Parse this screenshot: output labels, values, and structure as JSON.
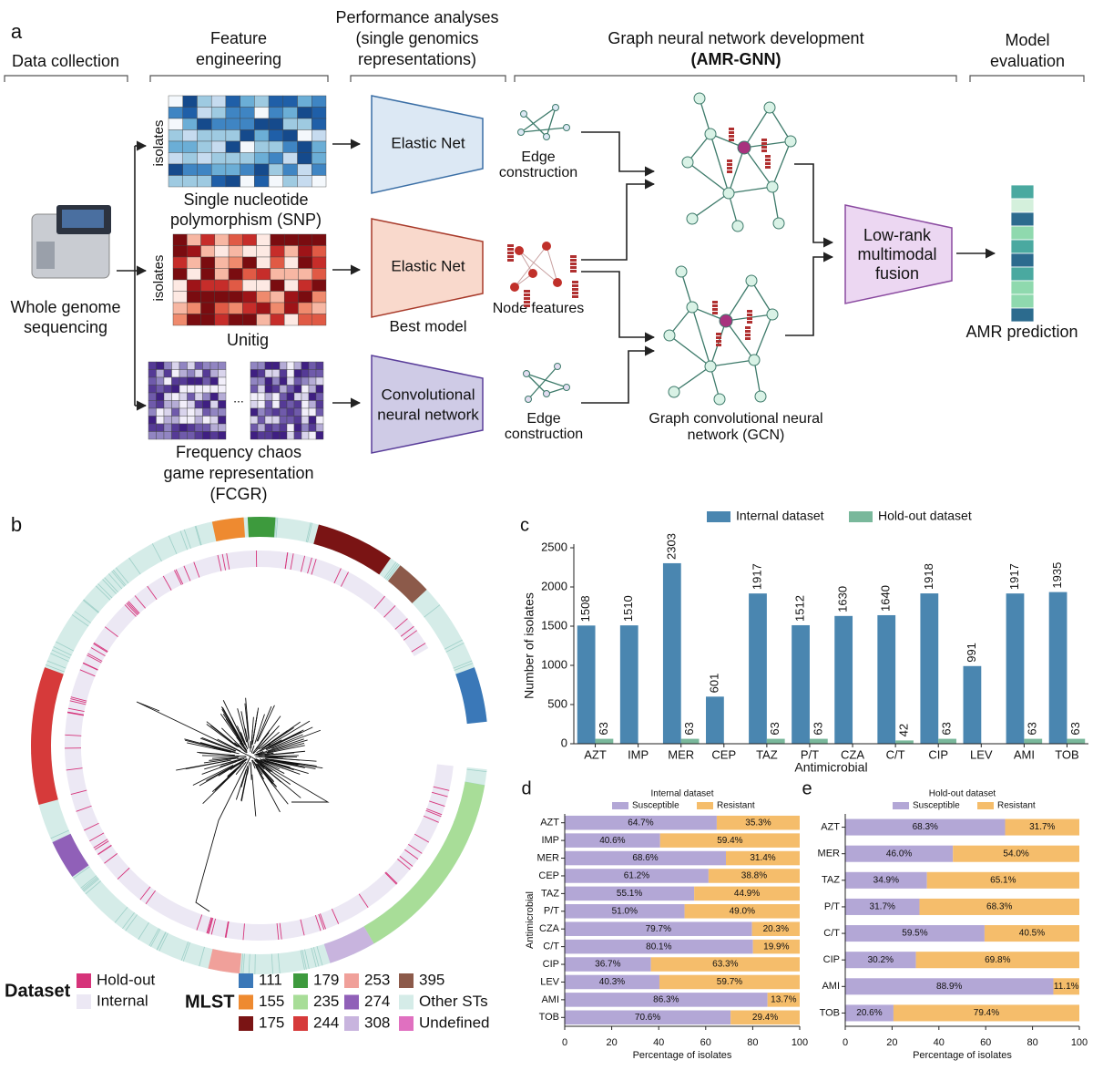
{
  "panel_a": {
    "label": "a",
    "stages": {
      "data_collection": "Data collection",
      "feature_engineering": [
        "Feature",
        "engineering"
      ],
      "performance": [
        "Performance analyses",
        "(single genomics",
        "representations)"
      ],
      "gnn": [
        "Graph neural network development",
        "(AMR-GNN)"
      ],
      "evaluation": [
        "Model",
        "evaluation"
      ]
    },
    "wgs": [
      "Whole genome",
      "sequencing"
    ],
    "isolates": "isolates",
    "snp": [
      "Single nucleotide",
      "polymorphism (SNP)"
    ],
    "unitig": "Unitig",
    "fcgr": [
      "Frequency chaos",
      "game representation",
      "(FCGR)"
    ],
    "ellipsis": "...",
    "models": [
      {
        "label": [
          "Elastic Net"
        ]
      },
      {
        "label": [
          "Elastic Net"
        ],
        "note": "Best model"
      },
      {
        "label": [
          "Convolutional",
          "neural network"
        ]
      }
    ],
    "edge1": [
      "Edge",
      "construction"
    ],
    "node_features": "Node features",
    "edge2": [
      "Edge",
      "construction"
    ],
    "gcn": [
      "Graph convolutional neural",
      "network (GCN)"
    ],
    "fusion": [
      "Low-rank",
      "multimodal",
      "fusion"
    ],
    "prediction": "AMR prediction"
  },
  "panel_b": {
    "label": "b",
    "dataset_legend": {
      "title": "Dataset",
      "entries": [
        {
          "name": "Hold-out",
          "color": "#d6337a"
        },
        {
          "name": "Internal",
          "color": "#ece8f4"
        }
      ]
    },
    "mlst_legend": {
      "title": "MLST",
      "entries": [
        {
          "name": "111",
          "color": "#3a78b8"
        },
        {
          "name": "155",
          "color": "#ee8a30"
        },
        {
          "name": "175",
          "color": "#7a1414"
        },
        {
          "name": "179",
          "color": "#3d9a3d"
        },
        {
          "name": "235",
          "color": "#a8dd98"
        },
        {
          "name": "244",
          "color": "#d63a3a"
        },
        {
          "name": "253",
          "color": "#f0a09a"
        },
        {
          "name": "274",
          "color": "#9060b8"
        },
        {
          "name": "308",
          "color": "#c8b4de"
        },
        {
          "name": "395",
          "color": "#8c5a4a"
        },
        {
          "name": "Other STs",
          "color": "#d5ece8"
        },
        {
          "name": "Undefined",
          "color": "#e070c0"
        }
      ]
    }
  },
  "chart_data": [
    {
      "type": "bar",
      "label": "c",
      "x_label": "Antimicrobial",
      "y_label": "Number of isolates",
      "legend": "top",
      "categories": [
        "AZT",
        "IMP",
        "MER",
        "CEP",
        "TAZ",
        "P/T",
        "CZA",
        "C/T",
        "CIP",
        "LEV",
        "AMI",
        "TOB"
      ],
      "series": [
        {
          "name": "Internal dataset",
          "color": "#4a86b0",
          "values": [
            1508,
            1510,
            2303,
            601,
            1917,
            1512,
            1630,
            1640,
            1918,
            991,
            1917,
            1935
          ]
        },
        {
          "name": "Hold-out dataset",
          "color": "#79b89b",
          "values": [
            63,
            null,
            63,
            null,
            63,
            63,
            null,
            42,
            63,
            null,
            63,
            63
          ]
        }
      ],
      "ylim": [
        0,
        2500
      ],
      "yticks": [
        0,
        500,
        1000,
        1500,
        2000,
        2500
      ]
    },
    {
      "type": "bar",
      "orientation": "horizontal",
      "stacked": true,
      "label": "d",
      "title": "Internal dataset",
      "x_label": "Percentage of isolates",
      "y_label": "Antimicrobial",
      "legend": "top",
      "categories": [
        "AZT",
        "IMP",
        "MER",
        "CEP",
        "TAZ",
        "P/T",
        "CZA",
        "C/T",
        "CIP",
        "LEV",
        "AMI",
        "TOB"
      ],
      "series": [
        {
          "name": "Susceptible",
          "color": "#b3a7d6",
          "values": [
            64.7,
            40.6,
            68.6,
            61.2,
            55.1,
            51.0,
            79.7,
            80.1,
            36.7,
            40.3,
            86.3,
            70.6
          ],
          "value_labels": [
            "64.7%",
            "40.6%",
            "68.6%",
            "61.2%",
            "55.1%",
            "51.0%",
            "79.7%",
            "80.1%",
            "36.7%",
            "40.3%",
            "86.3%",
            "70.6%"
          ]
        },
        {
          "name": "Resistant",
          "color": "#f5bd6b",
          "values": [
            35.3,
            59.4,
            31.4,
            38.8,
            44.9,
            49.0,
            20.3,
            19.9,
            63.3,
            59.7,
            13.7,
            29.4
          ],
          "value_labels": [
            "35.3%",
            "59.4%",
            "31.4%",
            "38.8%",
            "44.9%",
            "49.0%",
            "20.3%",
            "19.9%",
            "63.3%",
            "59.7%",
            "13.7%",
            "29.4%"
          ]
        }
      ],
      "xlim": [
        0,
        100
      ],
      "xticks": [
        0,
        20,
        40,
        60,
        80,
        100
      ]
    },
    {
      "type": "bar",
      "orientation": "horizontal",
      "stacked": true,
      "label": "e",
      "title": "Hold-out dataset",
      "x_label": "Percentage of isolates",
      "legend": "top",
      "categories": [
        "AZT",
        "MER",
        "TAZ",
        "P/T",
        "C/T",
        "CIP",
        "AMI",
        "TOB"
      ],
      "series": [
        {
          "name": "Susceptible",
          "color": "#b3a7d6",
          "values": [
            68.3,
            46.0,
            34.9,
            31.7,
            59.5,
            30.2,
            88.9,
            20.6
          ],
          "value_labels": [
            "68.3%",
            "46.0%",
            "34.9%",
            "31.7%",
            "59.5%",
            "30.2%",
            "88.9%",
            "20.6%"
          ]
        },
        {
          "name": "Resistant",
          "color": "#f5bd6b",
          "values": [
            31.7,
            54.0,
            65.1,
            68.3,
            40.5,
            69.8,
            11.1,
            79.4
          ],
          "value_labels": [
            "31.7%",
            "54.0%",
            "65.1%",
            "68.3%",
            "40.5%",
            "69.8%",
            "11.1%",
            "79.4%"
          ]
        }
      ],
      "xlim": [
        0,
        100
      ],
      "xticks": [
        0,
        20,
        40,
        60,
        80,
        100
      ]
    }
  ]
}
